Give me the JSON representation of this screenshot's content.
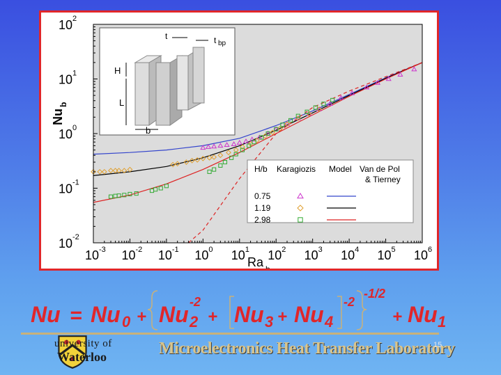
{
  "chart_data": {
    "type": "scatter",
    "x_scale": "log",
    "y_scale": "log",
    "xlim": [
      0.001,
      1000000
    ],
    "ylim": [
      0.01,
      100
    ],
    "xlabel_main": "Ra",
    "xlabel_sub": "b",
    "ylabel_main": "Nu",
    "ylabel_sub": "b",
    "x_ticks": [
      {
        "base": "10",
        "exp": "-3",
        "value": 0.001
      },
      {
        "base": "10",
        "exp": "-2",
        "value": 0.01
      },
      {
        "base": "10",
        "exp": "-1",
        "value": 0.1
      },
      {
        "base": "10",
        "exp": "0",
        "value": 1
      },
      {
        "base": "10",
        "exp": "1",
        "value": 10
      },
      {
        "base": "10",
        "exp": "2",
        "value": 100
      },
      {
        "base": "10",
        "exp": "3",
        "value": 1000
      },
      {
        "base": "10",
        "exp": "4",
        "value": 10000
      },
      {
        "base": "10",
        "exp": "5",
        "value": 100000
      },
      {
        "base": "10",
        "exp": "6",
        "value": 1000000
      }
    ],
    "y_ticks": [
      {
        "base": "10",
        "exp": "-2",
        "value": 0.01
      },
      {
        "base": "10",
        "exp": "-1",
        "value": 0.1
      },
      {
        "base": "10",
        "exp": "0",
        "value": 1
      },
      {
        "base": "10",
        "exp": "1",
        "value": 10
      },
      {
        "base": "10",
        "exp": "2",
        "value": 100
      }
    ],
    "legend": {
      "headers": [
        "H/b",
        "Karagiozis",
        "Model",
        "Van de Pol",
        "& Tierney"
      ],
      "rows": [
        {
          "label": "0.75",
          "marker": "triangle",
          "marker_color": "#cc33cc",
          "line_color": "#3344cc"
        },
        {
          "label": "1.19",
          "marker": "diamond",
          "marker_color": "#e0a030",
          "line_color": "#000000"
        },
        {
          "label": "2.98",
          "marker": "square",
          "marker_color": "#33aa33",
          "line_color": "#dd2222"
        }
      ],
      "placement": "lower-right"
    },
    "series": [
      {
        "marker": "triangle",
        "color": "#cc33cc",
        "x": [
          1.0,
          1.4,
          2.0,
          3.0,
          4.5,
          7,
          10,
          15,
          22,
          35,
          60,
          100,
          200,
          400,
          800,
          1500,
          3000,
          6000,
          12000,
          30000,
          60000,
          120000,
          250000,
          600000
        ],
        "y": [
          0.55,
          0.57,
          0.58,
          0.6,
          0.62,
          0.64,
          0.68,
          0.72,
          0.78,
          0.85,
          1.0,
          1.2,
          1.5,
          1.9,
          2.3,
          2.8,
          3.5,
          4.5,
          5.5,
          7.0,
          8.5,
          10.0,
          12.0,
          15.0
        ]
      },
      {
        "marker": "diamond",
        "color": "#e0a030",
        "x": [
          0.001,
          0.0015,
          0.002,
          0.003,
          0.004,
          0.005,
          0.007,
          0.01,
          0.15,
          0.2,
          0.35,
          0.5,
          0.7,
          1.0,
          1.5,
          2.0,
          3.0,
          5,
          8,
          12,
          20,
          30,
          50,
          80,
          130,
          200,
          400,
          800,
          1500
        ],
        "y": [
          0.2,
          0.2,
          0.2,
          0.21,
          0.21,
          0.21,
          0.21,
          0.22,
          0.27,
          0.28,
          0.3,
          0.32,
          0.33,
          0.35,
          0.36,
          0.37,
          0.4,
          0.45,
          0.5,
          0.57,
          0.65,
          0.75,
          0.9,
          1.05,
          1.25,
          1.5,
          1.9,
          2.3,
          2.8
        ]
      },
      {
        "marker": "square",
        "color": "#33aa33",
        "x": [
          0.003,
          0.004,
          0.005,
          0.007,
          0.01,
          0.015,
          0.04,
          0.05,
          0.07,
          0.1,
          1.5,
          2.0,
          3.0,
          4.0,
          6,
          8,
          12,
          18,
          25,
          40,
          60,
          100,
          150,
          250,
          400,
          700,
          1200,
          2000,
          3500
        ],
        "y": [
          0.07,
          0.072,
          0.073,
          0.075,
          0.078,
          0.08,
          0.09,
          0.095,
          0.1,
          0.11,
          0.2,
          0.22,
          0.26,
          0.3,
          0.36,
          0.42,
          0.5,
          0.6,
          0.7,
          0.85,
          1.0,
          1.2,
          1.45,
          1.75,
          2.1,
          2.5,
          3.0,
          3.5,
          4.1
        ]
      }
    ],
    "lines": [
      {
        "color": "#3344cc",
        "dash": "solid",
        "x": [
          0.001,
          0.01,
          0.1,
          1,
          10,
          100,
          1000,
          10000,
          100000,
          1000000
        ],
        "y": [
          0.42,
          0.45,
          0.5,
          0.6,
          0.82,
          1.4,
          2.6,
          5.2,
          10.5,
          20
        ]
      },
      {
        "color": "#000000",
        "dash": "solid",
        "x": [
          0.001,
          0.01,
          0.1,
          1,
          10,
          100,
          1000,
          10000,
          100000,
          1000000
        ],
        "y": [
          0.17,
          0.2,
          0.25,
          0.36,
          0.6,
          1.15,
          2.4,
          5.0,
          10.3,
          20
        ]
      },
      {
        "color": "#dd2222",
        "dash": "solid",
        "x": [
          0.001,
          0.01,
          0.1,
          1,
          10,
          100,
          1000,
          10000,
          100000,
          1000000
        ],
        "y": [
          0.055,
          0.075,
          0.12,
          0.22,
          0.45,
          1.0,
          2.2,
          4.8,
          10.0,
          20
        ]
      },
      {
        "color": "#dd2222",
        "dash": "dashed",
        "x": [
          0.4,
          1,
          10,
          100,
          1000,
          10000,
          100000,
          1000000
        ],
        "y": [
          0.01,
          0.017,
          0.15,
          1.0,
          3.0,
          6.0,
          11.0,
          20
        ]
      }
    ],
    "inset": {
      "labels": [
        "t",
        "t",
        "bp",
        "H",
        "L",
        "b"
      ]
    }
  },
  "formula": {
    "nu": "Nu",
    "eq": "=",
    "nu0_base": "Nu",
    "nu0_sub": "0",
    "plus": "+",
    "nu2_base": "Nu",
    "nu2_sub": "2",
    "nu2_sup": "-2",
    "nu3_base": "Nu",
    "nu3_sub": "3",
    "nu4_base": "Nu",
    "nu4_sub": "4",
    "inner_sup": "-2",
    "outer_sup": "-1/2",
    "nu1_base": "Nu",
    "nu1_sub": "1"
  },
  "footer": {
    "university_line1": "university of",
    "university_line2": "Waterloo",
    "lab_name": "Microelectronics Heat Transfer Laboratory",
    "page_number": "15"
  },
  "colors": {
    "frame_border": "#e0262a",
    "formula_red": "#e0262a",
    "lab_gold": "#d8c48c"
  }
}
